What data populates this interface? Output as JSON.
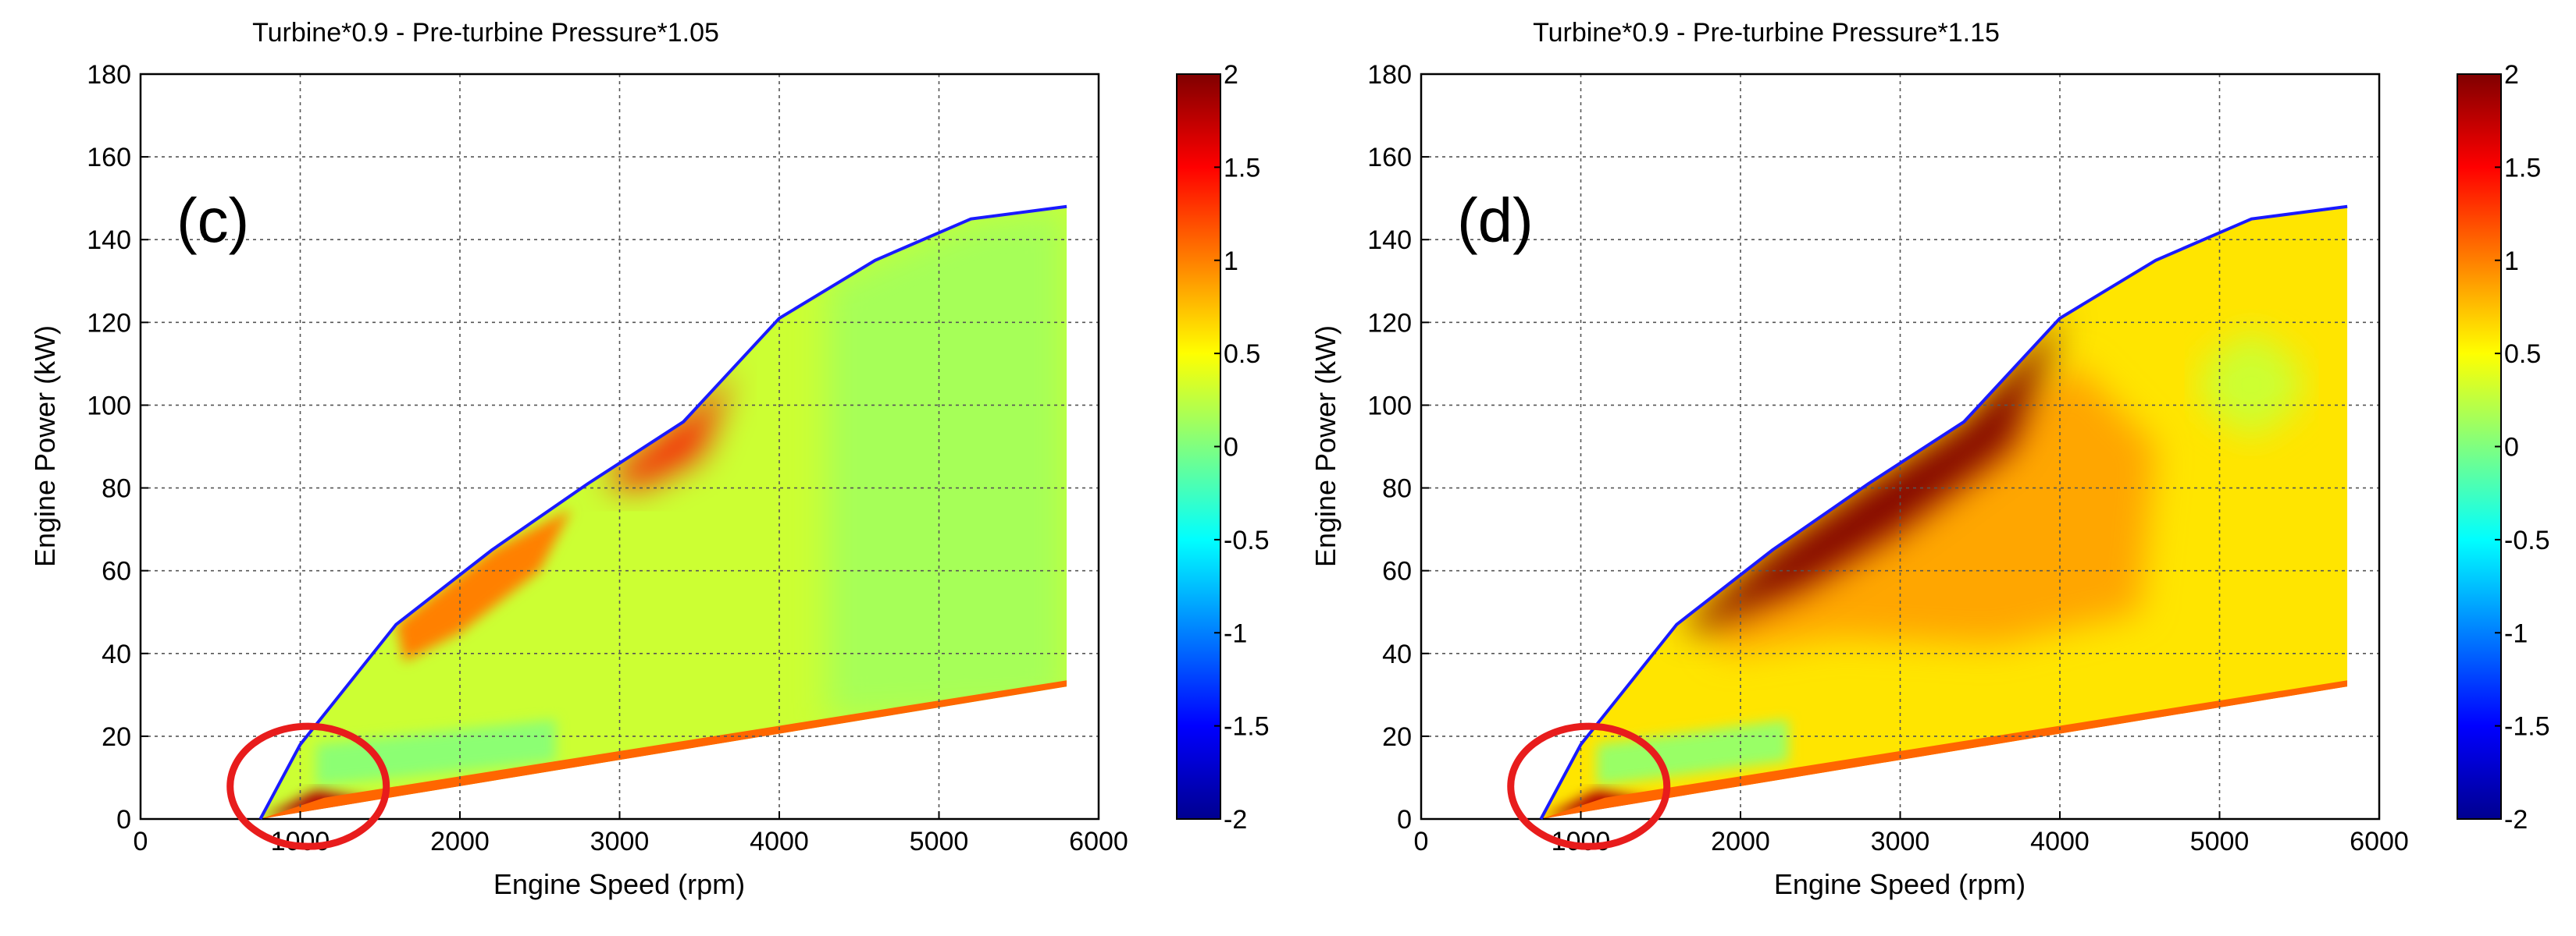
{
  "colors": {
    "envelope_line": "#1a1aff",
    "highlight_circle": "#e81c1c",
    "gridline": "#555555"
  },
  "chart_data": [
    {
      "type": "contourf",
      "panel_tag": "(c)",
      "title": "Turbine*0.9 - Pre-turbine Pressure*1.05",
      "xlabel": "Engine Speed (rpm)",
      "ylabel": "Engine Power (kW)",
      "xlim": [
        0,
        6000
      ],
      "ylim": [
        0,
        180
      ],
      "xticks": [
        0,
        1000,
        2000,
        3000,
        4000,
        5000,
        6000
      ],
      "yticks": [
        0,
        20,
        40,
        60,
        80,
        100,
        120,
        140,
        160,
        180
      ],
      "grid": true,
      "colorbar": {
        "clim": [
          -2,
          2
        ],
        "ticks": [
          "2",
          "1.5",
          "1",
          "0.5",
          "0",
          "-0.5",
          "-1",
          "-1.5",
          "-2"
        ],
        "colormap": "jet"
      },
      "max_power_line": {
        "x": [
          750,
          1000,
          1600,
          2200,
          2800,
          3400,
          4000,
          4600,
          5200,
          5800
        ],
        "y": [
          0,
          18,
          47,
          65,
          81,
          96,
          121,
          135,
          145,
          148
        ]
      },
      "min_power_boundary": {
        "x": [
          750,
          5800
        ],
        "y": [
          0,
          32
        ]
      },
      "contour_regions": [
        {
          "label": "bulk",
          "value": 0.3,
          "x": [
            750,
            1000,
            1600,
            2200,
            2800,
            3400,
            4000,
            4600,
            5200,
            5800,
            5800
          ],
          "y": [
            0,
            18,
            47,
            65,
            81,
            96,
            121,
            135,
            145,
            148,
            32
          ]
        },
        {
          "label": "high-speed region",
          "value": 0.15,
          "x": [
            4300,
            4600,
            5200,
            5800,
            5800,
            4300
          ],
          "y": [
            130,
            135,
            145,
            148,
            27,
            24
          ]
        },
        {
          "label": "low-power band",
          "value": 0.05,
          "x": [
            1100,
            2600,
            2600,
            1100
          ],
          "y": [
            18,
            24,
            14,
            8
          ]
        },
        {
          "label": "full-load red zone",
          "value": 1.5,
          "x": [
            2900,
            3400,
            3700,
            3500,
            3100
          ],
          "y": [
            82,
            96,
            108,
            88,
            80
          ]
        },
        {
          "label": "full-load orange band",
          "value": 1.0,
          "x": [
            1600,
            2200,
            2700,
            2500,
            2000,
            1650
          ],
          "y": [
            47,
            65,
            75,
            60,
            45,
            38
          ]
        },
        {
          "label": "idle corner",
          "value": 1.8,
          "x": [
            750,
            1500,
            1100
          ],
          "y": [
            0,
            4,
            7
          ]
        }
      ],
      "annotations": [
        {
          "type": "circle",
          "color": "red",
          "center": [
            1050,
            6
          ]
        }
      ]
    },
    {
      "type": "contourf",
      "panel_tag": "(d)",
      "title": "Turbine*0.9 - Pre-turbine Pressure*1.15",
      "xlabel": "Engine Speed (rpm)",
      "ylabel": "Engine Power (kW)",
      "xlim": [
        0,
        6000
      ],
      "ylim": [
        0,
        180
      ],
      "xticks": [
        0,
        1000,
        2000,
        3000,
        4000,
        5000,
        6000
      ],
      "yticks": [
        0,
        20,
        40,
        60,
        80,
        100,
        120,
        140,
        160,
        180
      ],
      "grid": true,
      "colorbar": {
        "clim": [
          -2,
          2
        ],
        "ticks": [
          "2",
          "1.5",
          "1",
          "0.5",
          "0",
          "-0.5",
          "-1",
          "-1.5",
          "-2"
        ],
        "colormap": "jet"
      },
      "max_power_line": {
        "x": [
          750,
          1000,
          1600,
          2200,
          2800,
          3400,
          4000,
          4600,
          5200,
          5800
        ],
        "y": [
          0,
          18,
          47,
          65,
          81,
          96,
          121,
          135,
          145,
          148
        ]
      },
      "min_power_boundary": {
        "x": [
          750,
          5800
        ],
        "y": [
          0,
          32
        ]
      },
      "contour_regions": [
        {
          "label": "bulk",
          "value": 0.6,
          "x": [
            750,
            1000,
            1600,
            2200,
            2800,
            3400,
            4000,
            4600,
            5200,
            5800,
            5800
          ],
          "y": [
            0,
            18,
            47,
            65,
            81,
            96,
            121,
            135,
            145,
            148,
            32
          ]
        },
        {
          "label": "mid orange",
          "value": 0.85,
          "x": [
            1800,
            2500,
            3300,
            4100,
            4600,
            4500,
            3600,
            2600,
            1900
          ],
          "y": [
            45,
            70,
            88,
            110,
            90,
            50,
            42,
            44,
            40
          ]
        },
        {
          "label": "high-speed pocket",
          "value": 0.3,
          "x": [
            4900,
            5200,
            5500,
            5500,
            5200,
            4900
          ],
          "y": [
            110,
            118,
            110,
            100,
            92,
            100
          ]
        },
        {
          "label": "low-power green band",
          "value": 0.1,
          "x": [
            1100,
            2300,
            2300,
            1100
          ],
          "y": [
            18,
            24,
            14,
            8
          ]
        },
        {
          "label": "full-load dark red zone",
          "value": 2.0,
          "x": [
            1650,
            2200,
            2800,
            3400,
            4000,
            4050,
            3700,
            3000,
            2400,
            1900,
            1700
          ],
          "y": [
            47,
            65,
            81,
            96,
            121,
            125,
            90,
            70,
            56,
            48,
            45
          ]
        },
        {
          "label": "idle corner",
          "value": 1.8,
          "x": [
            750,
            1500,
            1100
          ],
          "y": [
            0,
            4,
            7
          ]
        }
      ],
      "annotations": [
        {
          "type": "circle",
          "color": "red",
          "center": [
            1050,
            6
          ]
        }
      ]
    }
  ]
}
